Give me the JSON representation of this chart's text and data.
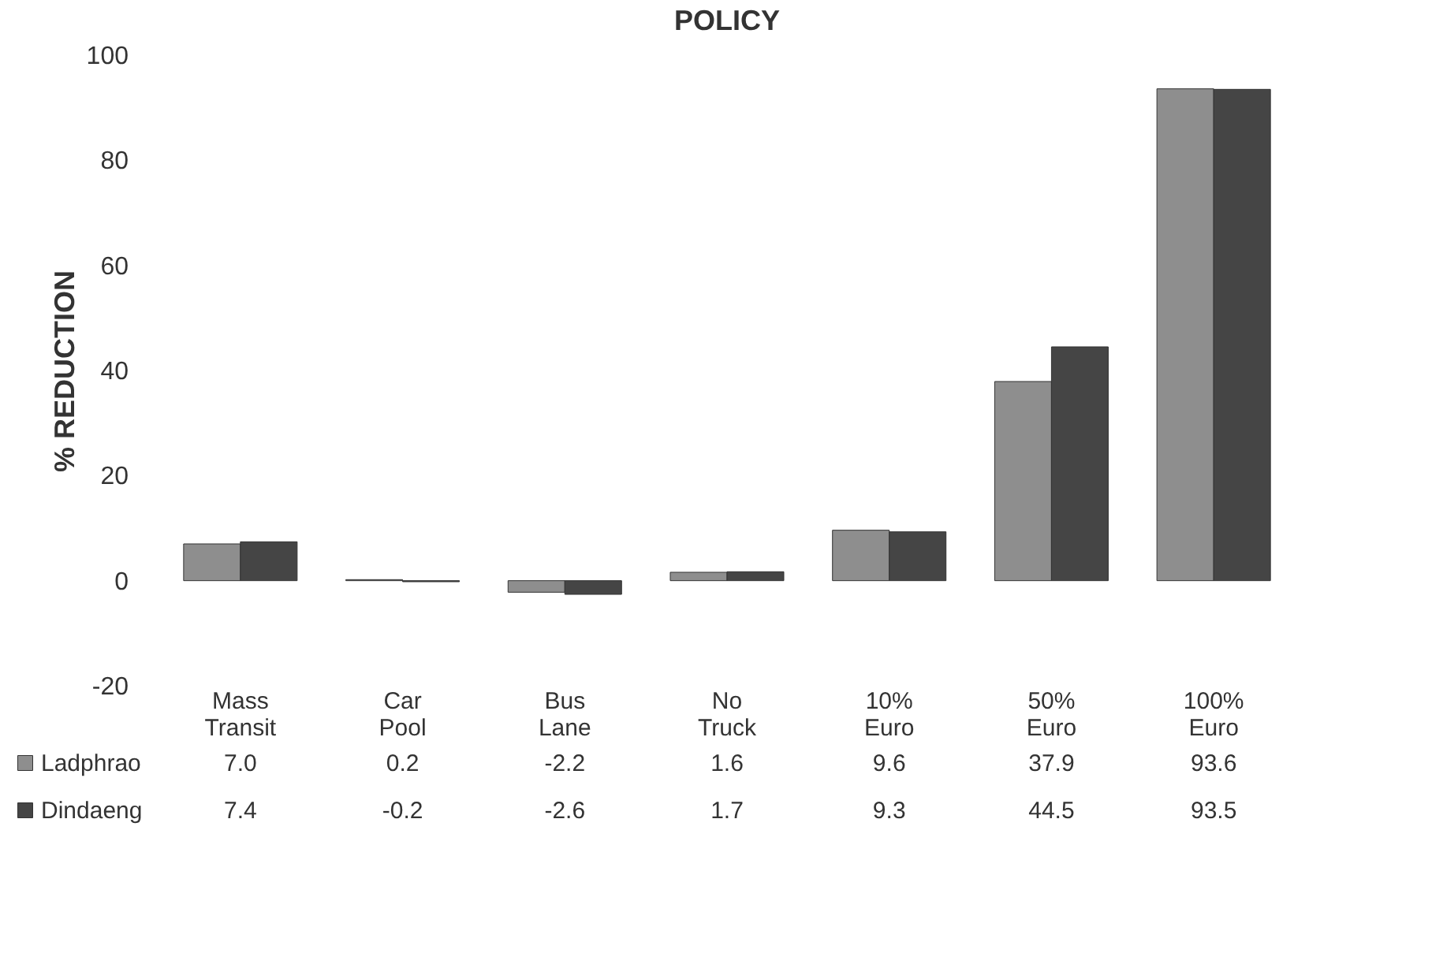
{
  "chart_data": {
    "type": "bar",
    "title": "POLICY",
    "ylabel": "% REDUCTION",
    "categories": [
      "Mass Transit",
      "Car Pool",
      "Bus Lane",
      "No Truck",
      "10% Euro",
      "50% Euro",
      "100% Euro"
    ],
    "series": [
      {
        "name": "Ladphrao",
        "color": "#8e8e8e",
        "values": [
          7.0,
          0.2,
          -2.2,
          1.6,
          9.6,
          37.9,
          93.6
        ],
        "value_labels": [
          "7.0",
          "0.2",
          "-2.2",
          "1.6",
          "9.6",
          "37.9",
          "93.6"
        ]
      },
      {
        "name": "Dindaeng",
        "color": "#454545",
        "values": [
          7.4,
          -0.2,
          -2.6,
          1.7,
          9.3,
          44.5,
          93.5
        ],
        "value_labels": [
          "7.4",
          "-0.2",
          "-2.6",
          "1.7",
          "9.3",
          "44.5",
          "93.5"
        ]
      }
    ],
    "ylim": [
      -20,
      100
    ],
    "yticks": [
      -20,
      0,
      20,
      40,
      60,
      80,
      100
    ],
    "grid": false,
    "legend": "bottom left"
  }
}
